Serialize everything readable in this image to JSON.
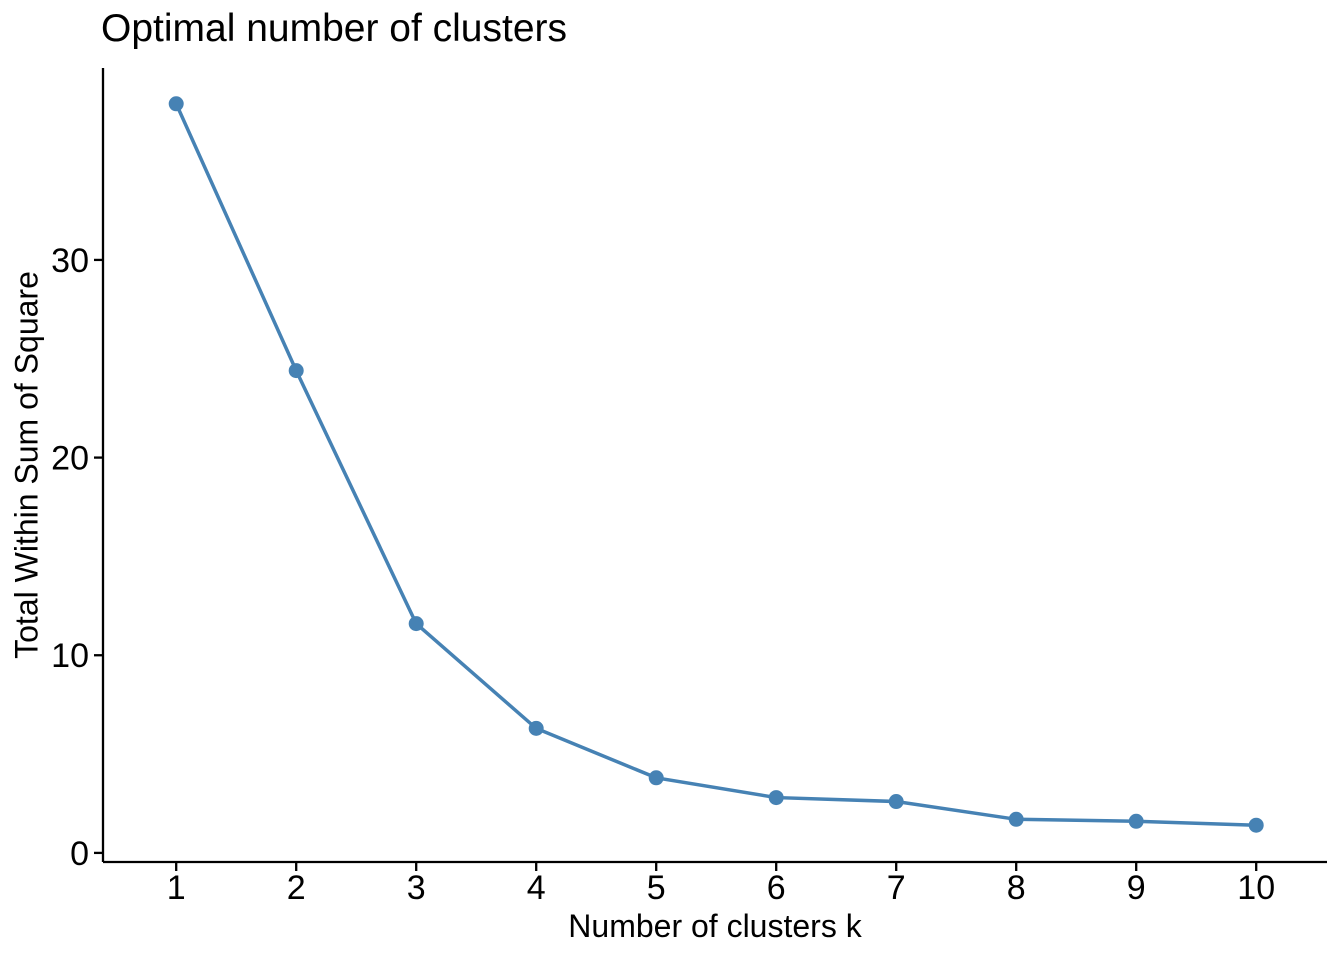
{
  "chart_data": {
    "type": "line",
    "title": "Optimal number of clusters",
    "xlabel": "Number of clusters k",
    "ylabel": "Total Within Sum of Square",
    "x": [
      1,
      2,
      3,
      4,
      5,
      6,
      7,
      8,
      9,
      10
    ],
    "series": [
      {
        "name": "total-within-sum-of-square",
        "values": [
          37.9,
          24.4,
          11.6,
          6.3,
          3.8,
          2.8,
          2.6,
          1.7,
          1.6,
          1.4
        ]
      }
    ],
    "x_ticks": [
      1,
      2,
      3,
      4,
      5,
      6,
      7,
      8,
      9,
      10
    ],
    "y_ticks": [
      0,
      10,
      20,
      30
    ],
    "xlim": [
      0.39,
      10.59
    ],
    "ylim": [
      -0.46,
      39.71
    ],
    "grid": false,
    "legend": "none",
    "line_color": "#4682B4",
    "marker_color": "#4682B4",
    "axis_color": "#000000"
  }
}
